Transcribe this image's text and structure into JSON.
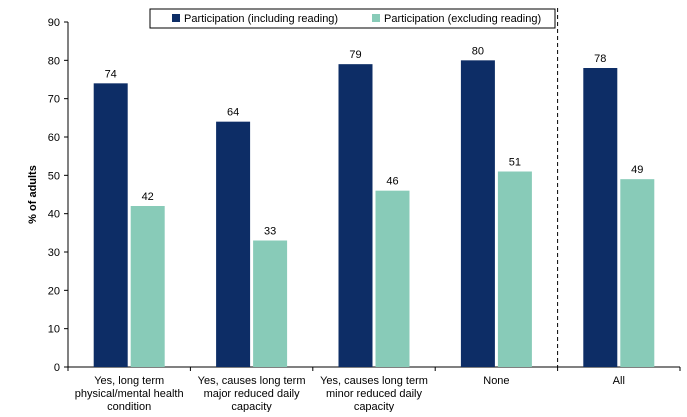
{
  "chart_data": {
    "type": "bar",
    "ylabel": "% of adults",
    "ylim": [
      0,
      90
    ],
    "yticks": [
      0,
      10,
      20,
      30,
      40,
      50,
      60,
      70,
      80,
      90
    ],
    "categories": [
      [
        "Yes, long term",
        "physical/mental health",
        "condition"
      ],
      [
        "Yes, causes long term",
        "major reduced daily",
        "capacity"
      ],
      [
        "Yes, causes long term",
        "minor reduced daily",
        "capacity"
      ],
      [
        "None"
      ],
      [
        "All"
      ]
    ],
    "series": [
      {
        "name": "Participation (including reading)",
        "color": "#0d2d66",
        "values": [
          74,
          64,
          79,
          80,
          78
        ]
      },
      {
        "name": "Participation (excluding reading)",
        "color": "#88cbb8",
        "values": [
          42,
          33,
          46,
          51,
          49
        ]
      }
    ],
    "divider_after_category": 3,
    "legend_position": "top"
  }
}
